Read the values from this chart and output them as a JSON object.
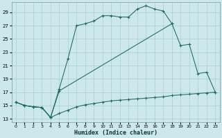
{
  "title": "",
  "xlabel": "Humidex (Indice chaleur)",
  "bg_color": "#cce8ec",
  "grid_color": "#aacdd4",
  "line_color": "#1a6b5a",
  "xlim": [
    -0.5,
    23.5
  ],
  "ylim": [
    12.5,
    30.5
  ],
  "xticks": [
    0,
    1,
    2,
    3,
    4,
    5,
    6,
    7,
    8,
    9,
    10,
    11,
    12,
    13,
    14,
    15,
    16,
    17,
    18,
    19,
    20,
    21,
    22,
    23
  ],
  "yticks": [
    13,
    15,
    17,
    19,
    21,
    23,
    25,
    27,
    29
  ],
  "line1_x": [
    0,
    1,
    2,
    3,
    4,
    5,
    6,
    7,
    8,
    9,
    10,
    11,
    12,
    13,
    14,
    15,
    16,
    17,
    18
  ],
  "line1_y": [
    15.5,
    15.0,
    14.8,
    14.7,
    13.2,
    17.5,
    22.0,
    27.0,
    27.3,
    27.7,
    28.5,
    28.5,
    28.3,
    28.3,
    29.5,
    30.0,
    29.5,
    29.2,
    27.3
  ],
  "line2_x": [
    0,
    1,
    2,
    3,
    4,
    5,
    18,
    19,
    20,
    21,
    22,
    23
  ],
  "line2_y": [
    15.5,
    15.0,
    14.8,
    14.7,
    13.2,
    17.2,
    27.3,
    24.0,
    24.2,
    19.8,
    20.0,
    17.0
  ],
  "line3_x": [
    0,
    1,
    2,
    3,
    4,
    5,
    6,
    7,
    8,
    9,
    10,
    11,
    12,
    13,
    14,
    15,
    16,
    17,
    18,
    19,
    20,
    21,
    22,
    23
  ],
  "line3_y": [
    15.5,
    15.0,
    14.8,
    14.7,
    13.2,
    13.8,
    14.3,
    14.8,
    15.1,
    15.3,
    15.5,
    15.7,
    15.8,
    15.9,
    16.0,
    16.1,
    16.2,
    16.3,
    16.5,
    16.6,
    16.7,
    16.8,
    16.9,
    17.0
  ]
}
